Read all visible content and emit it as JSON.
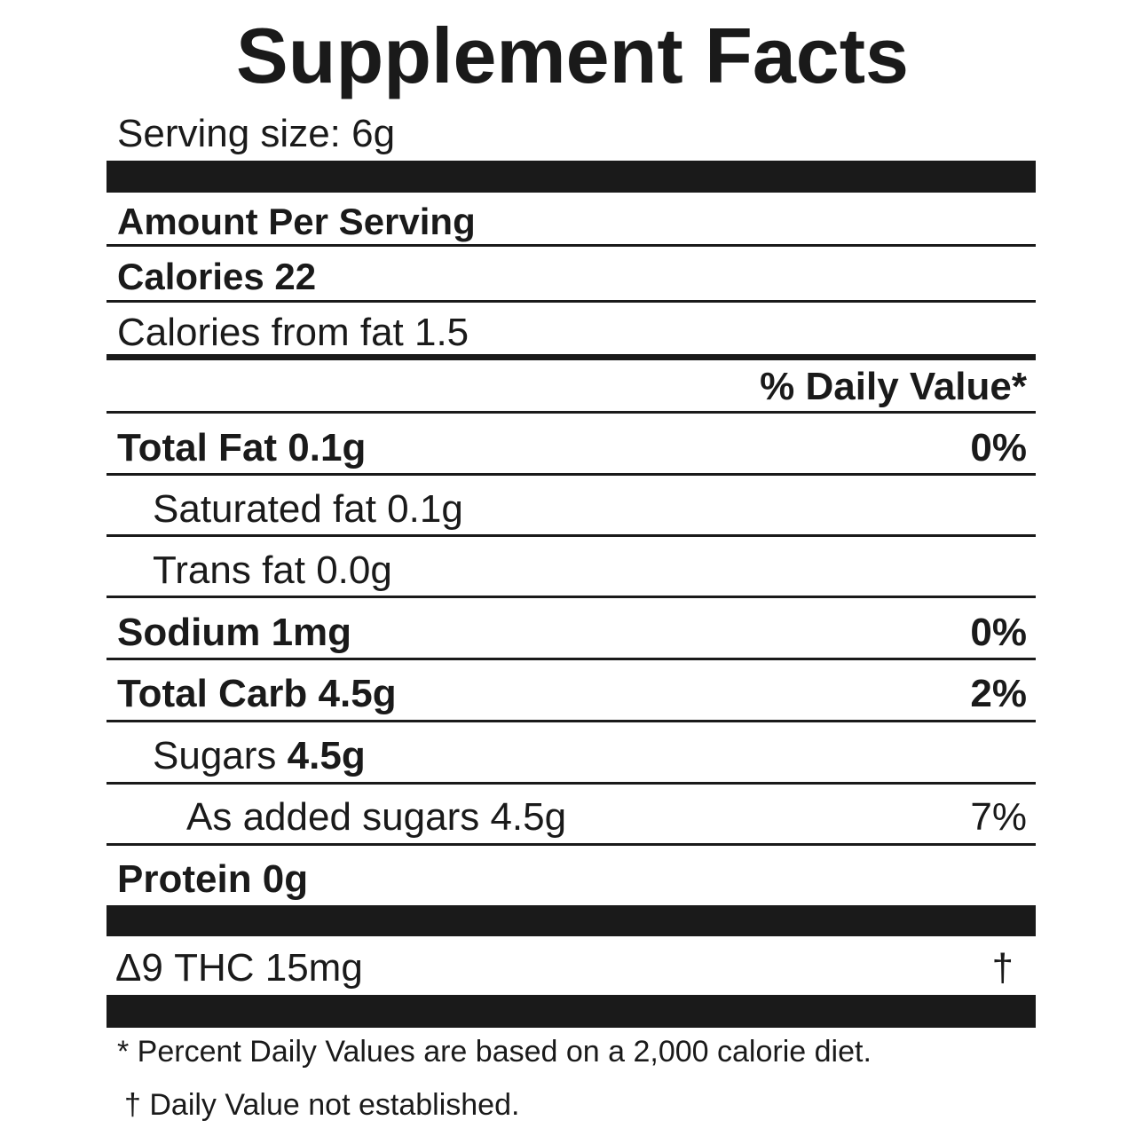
{
  "title": "Supplement Facts",
  "serving_size": "Serving size: 6g",
  "amount_per_serving": "Amount Per Serving",
  "calories": "Calories 22",
  "calories_from_fat": "Calories from fat 1.5",
  "daily_value_header": "% Daily Value*",
  "rows": [
    {
      "label": "Total Fat",
      "amount": "0.1g",
      "dv": "0%"
    },
    {
      "label": "Saturated fat 0.1g"
    },
    {
      "label": "Trans fat 0.0g"
    },
    {
      "label": "Sodium",
      "amount": "1mg",
      "dv": "0%"
    },
    {
      "label": "Total Carb",
      "amount": "4.5g",
      "dv": "2%"
    },
    {
      "label": "Sugars",
      "amount": "4.5g"
    },
    {
      "label": "As added sugars 4.5g",
      "dv": "7%"
    },
    {
      "label": "Protein 0g"
    }
  ],
  "thc": {
    "label": "Δ9 THC 15mg",
    "dv": "†"
  },
  "footnotes": [
    "* Percent Daily Values are based on a 2,000 calorie diet.",
    "† Daily Value not established."
  ]
}
